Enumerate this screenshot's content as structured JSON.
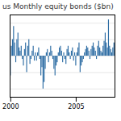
{
  "chart_data": {
    "type": "bar",
    "title": "us Monthly equity bonds ($bn)",
    "categories": [
      "2000",
      null,
      null,
      null,
      null,
      null,
      null,
      null,
      null,
      null,
      null,
      null,
      null,
      null,
      null,
      null,
      null,
      null,
      null,
      null,
      null,
      null,
      null,
      null,
      null,
      null,
      null,
      null,
      null,
      null,
      null,
      null,
      null,
      null,
      null,
      null,
      null,
      null,
      null,
      null,
      null,
      null,
      null,
      null,
      null,
      null,
      null,
      null,
      null,
      null,
      null,
      null,
      null,
      null,
      null,
      null,
      null,
      null,
      null,
      null,
      "2005",
      null,
      null,
      null,
      null,
      null,
      null,
      null,
      null,
      null,
      null,
      null,
      null,
      null,
      null,
      null,
      null,
      null,
      null,
      null,
      null,
      null,
      null,
      null,
      null,
      null,
      null,
      null,
      null,
      null,
      null,
      null,
      null,
      null,
      null,
      null
    ],
    "values": [
      -12,
      6,
      10,
      18,
      8,
      -4,
      10,
      14,
      5,
      3,
      6,
      -2,
      -6,
      4,
      8,
      -10,
      6,
      10,
      -5,
      -2,
      3,
      6,
      -3,
      2,
      -3,
      2,
      5,
      -2,
      -12,
      -7,
      -20,
      -16,
      -8,
      2,
      4,
      -4,
      2,
      6,
      3,
      -2,
      -8,
      -12,
      -6,
      -4,
      2,
      5,
      6,
      3,
      -4,
      2,
      -2,
      -5,
      4,
      6,
      2,
      -2,
      3,
      5,
      -3,
      2,
      -6,
      2,
      5,
      8,
      -10,
      -6,
      -4,
      -2,
      2,
      4,
      6,
      5,
      3,
      -2,
      4,
      6,
      8,
      5,
      3,
      -2,
      6,
      9,
      5,
      3,
      2,
      6,
      9,
      14,
      8,
      5,
      22,
      6,
      4,
      2,
      5,
      8
    ],
    "color": "#2e6da4",
    "ylim": [
      -25,
      25
    ],
    "yticks": [
      -20,
      -10,
      0,
      10,
      20
    ],
    "grid": true,
    "tick_labels": "x"
  }
}
